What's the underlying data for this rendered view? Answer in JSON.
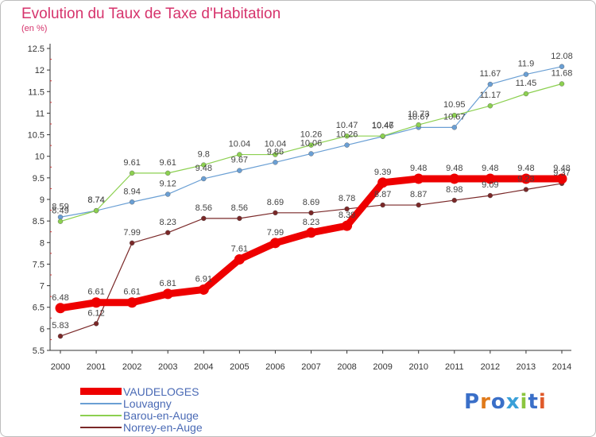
{
  "header": {
    "title": "Evolution du Taux de Taxe d'Habitation",
    "subtitle": "(en %)"
  },
  "brand": {
    "text": "Proxiti"
  },
  "chart_data": {
    "type": "line",
    "title": "Evolution du Taux de Taxe d'Habitation",
    "subtitle": "(en %)",
    "categories": [
      "2000",
      "2001",
      "2002",
      "2003",
      "2004",
      "2005",
      "2006",
      "2007",
      "2008",
      "2009",
      "2010",
      "2011",
      "2012",
      "2013",
      "2014"
    ],
    "ylim": [
      5.5,
      12.5
    ],
    "yticks": [
      "5.5",
      "6",
      "6.5",
      "7",
      "7.5",
      "8",
      "8.5",
      "9",
      "9.5",
      "10",
      "10.5",
      "11",
      "11.5",
      "12",
      "12.5"
    ],
    "grid": false,
    "legend": "bottom-left",
    "series": [
      {
        "name": "VAUDELOGES",
        "color": "#ee0000",
        "values": [
          6.48,
          6.61,
          6.61,
          6.81,
          6.91,
          7.61,
          7.99,
          8.23,
          8.39,
          9.39,
          9.48,
          9.48,
          9.48,
          9.48,
          9.48
        ],
        "labels": [
          "6.48",
          "6.61",
          "6.61",
          "6.81",
          "6.91",
          "7.61",
          "7.99",
          "8.23",
          "8.39",
          "9.39",
          "9.48",
          "9.48",
          "9.48",
          "9.48",
          "9.48"
        ]
      },
      {
        "name": "Louvagny",
        "color": "#6a9fd4",
        "values": [
          8.59,
          8.74,
          8.94,
          9.12,
          9.48,
          9.67,
          9.86,
          10.06,
          10.26,
          10.46,
          10.67,
          10.67,
          11.67,
          11.9,
          12.08
        ],
        "labels": [
          "8.59",
          "8.74",
          "8.94",
          "9.12",
          "9.48",
          "9.67",
          "9.86",
          "10.06",
          "10.26",
          "10.46",
          "10.67",
          "10.67",
          "11.67",
          "11.9",
          "12.08"
        ]
      },
      {
        "name": "Barou-en-Auge",
        "color": "#8cd050",
        "values": [
          8.49,
          8.74,
          9.61,
          9.61,
          9.8,
          10.04,
          10.04,
          10.26,
          10.47,
          10.47,
          10.73,
          10.95,
          11.17,
          11.45,
          11.68
        ],
        "labels": [
          "8.49",
          "8.74",
          "9.61",
          "9.61",
          "9.8",
          "10.04",
          "10.04",
          "10.26",
          "10.47",
          "10.47",
          "10.73",
          "10.95",
          "11.17",
          "11.45",
          "11.68"
        ]
      },
      {
        "name": "Norrey-en-Auge",
        "color": "#7a2828",
        "values": [
          5.83,
          6.12,
          7.99,
          8.23,
          8.56,
          8.56,
          8.69,
          8.69,
          8.78,
          8.87,
          8.87,
          8.98,
          9.09,
          9.23,
          9.37
        ],
        "labels": [
          "5.83",
          "6.12",
          "7.99",
          "8.23",
          "8.56",
          "8.56",
          "8.69",
          "8.69",
          "8.78",
          "8.87",
          "8.87",
          "8.98",
          "9.09",
          "9.23",
          "9.37"
        ]
      }
    ]
  }
}
